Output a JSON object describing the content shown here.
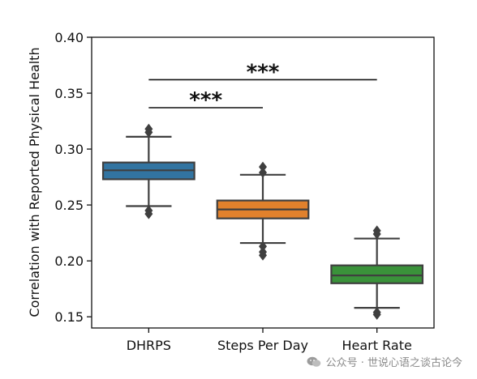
{
  "chart_data": {
    "type": "box",
    "ylabel": "Correlation with Reported Physical Health",
    "ylim": [
      0.14,
      0.4
    ],
    "yticks": [
      0.15,
      0.2,
      0.25,
      0.3,
      0.35,
      0.4
    ],
    "ytick_labels": [
      "0.15",
      "0.20",
      "0.25",
      "0.30",
      "0.35",
      "0.40"
    ],
    "categories": [
      "DHRPS",
      "Steps Per Day",
      "Heart Rate"
    ],
    "boxes": [
      {
        "name": "DHRPS",
        "color": "#3274a1",
        "whisker_low": 0.249,
        "q1": 0.273,
        "median": 0.281,
        "q3": 0.288,
        "whisker_high": 0.311,
        "outliers": [
          0.318,
          0.315,
          0.245,
          0.242
        ]
      },
      {
        "name": "Steps Per Day",
        "color": "#e1812c",
        "whisker_low": 0.216,
        "q1": 0.238,
        "median": 0.246,
        "q3": 0.254,
        "whisker_high": 0.277,
        "outliers": [
          0.284,
          0.279,
          0.213,
          0.208,
          0.205
        ]
      },
      {
        "name": "Heart Rate",
        "color": "#3a923a",
        "whisker_low": 0.158,
        "q1": 0.18,
        "median": 0.187,
        "q3": 0.196,
        "whisker_high": 0.22,
        "outliers": [
          0.227,
          0.224,
          0.154,
          0.152
        ]
      }
    ],
    "significance": [
      {
        "from": 0,
        "to": 2,
        "y": 0.362,
        "label": "***"
      },
      {
        "from": 0,
        "to": 1,
        "y": 0.337,
        "label": "***"
      }
    ],
    "grid": false,
    "legend": "none"
  },
  "watermark": {
    "text": "公众号 · 世说心语之谈古论今"
  }
}
